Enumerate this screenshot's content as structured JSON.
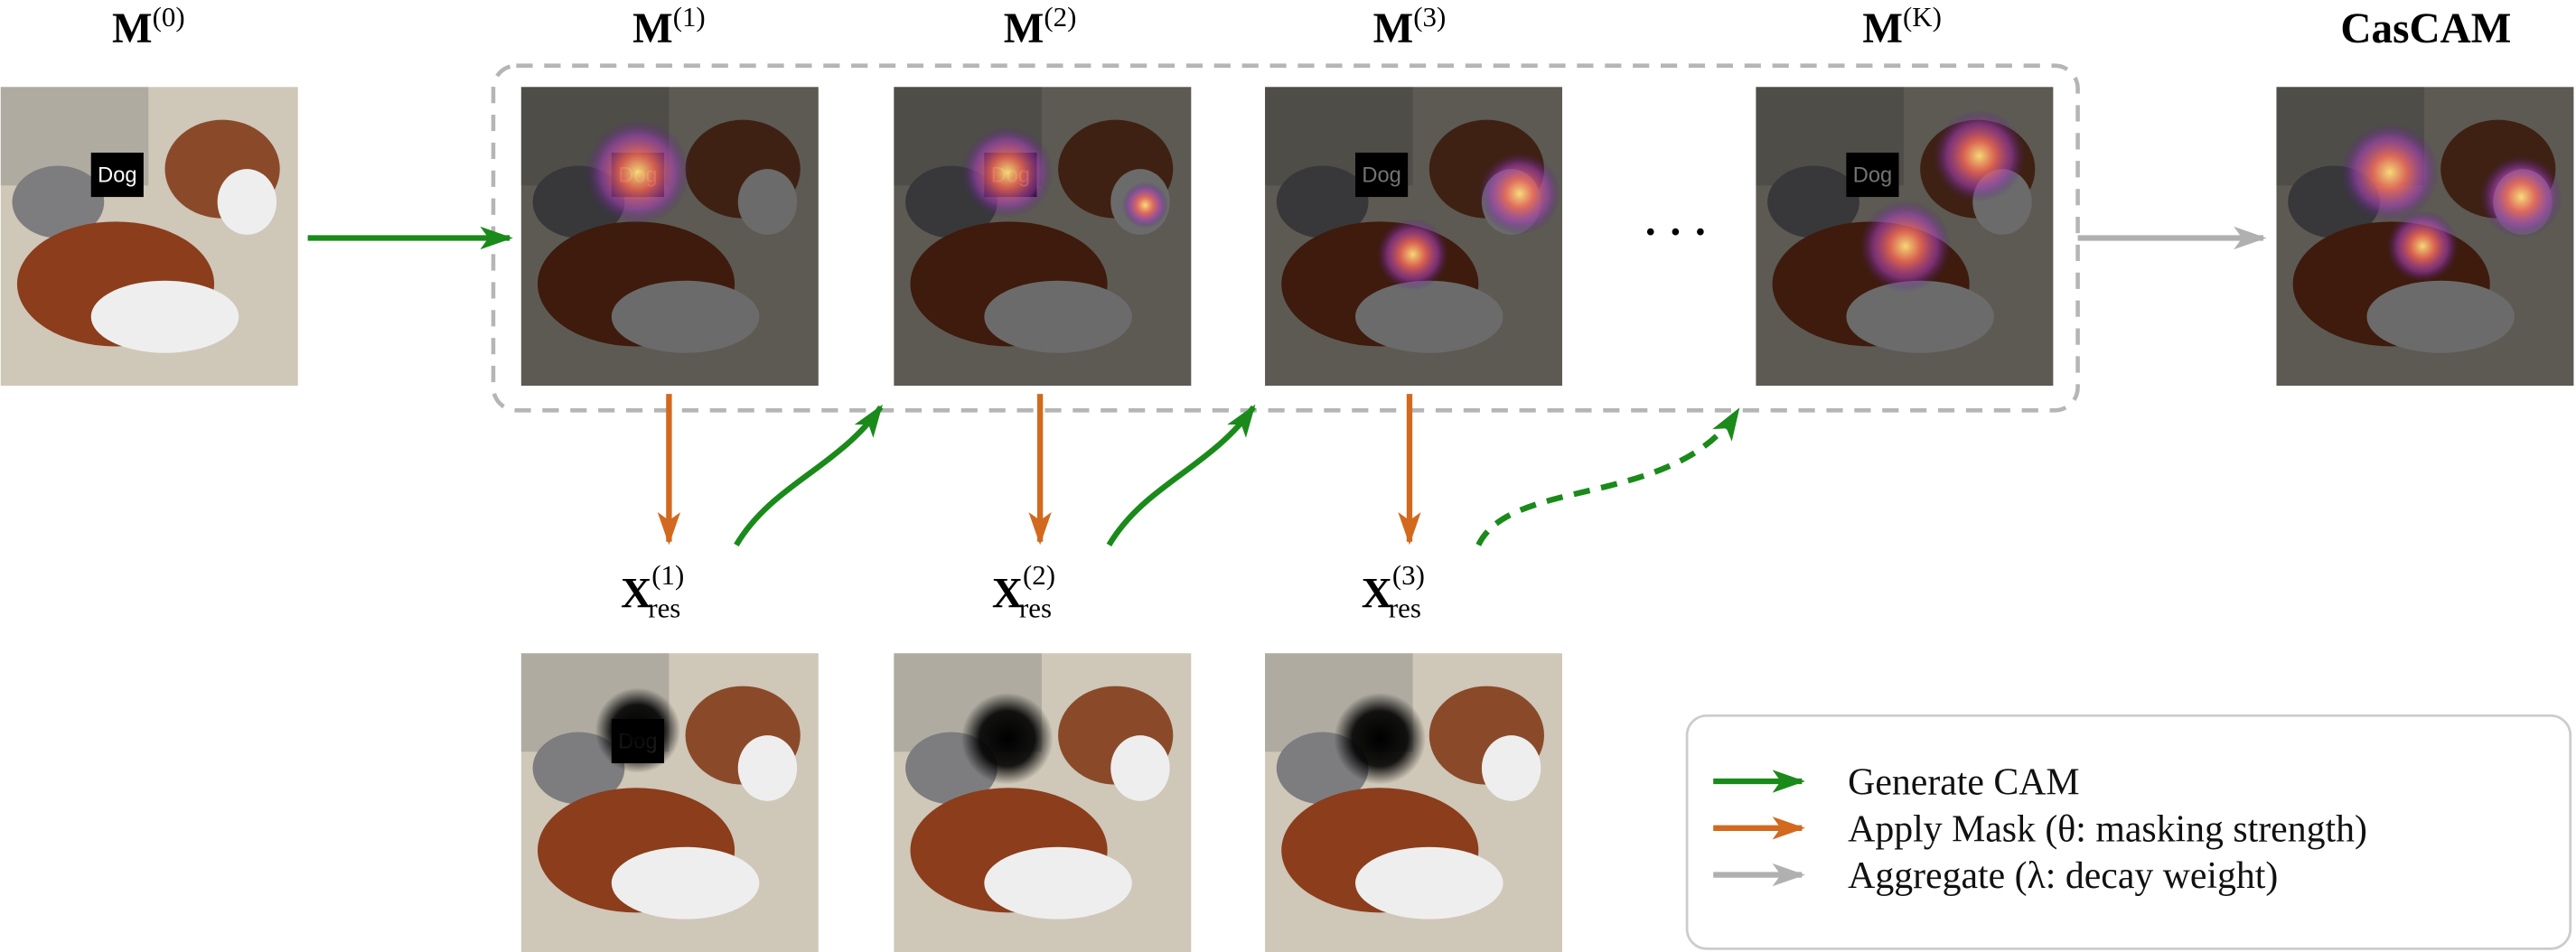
{
  "stages": [
    {
      "label": "M",
      "superscript": "(0)"
    },
    {
      "label": "M",
      "superscript": "(1)"
    },
    {
      "label": "M",
      "superscript": "(2)"
    },
    {
      "label": "M",
      "superscript": "(3)"
    },
    {
      "label": "M",
      "superscript": "(K)"
    }
  ],
  "output": {
    "label": "CasCAM"
  },
  "ellipsis": "· · ·",
  "image_tag": "Dog",
  "residuals": [
    {
      "label": "X",
      "superscript": "(1)",
      "subscript": "res"
    },
    {
      "label": "X",
      "superscript": "(2)",
      "subscript": "res"
    },
    {
      "label": "X",
      "superscript": "(3)",
      "subscript": "res"
    }
  ],
  "legend": [
    {
      "label": "Generate CAM"
    },
    {
      "label": "Apply Mask (θ: masking strength)"
    },
    {
      "label": "Aggregate (λ: decay weight)"
    }
  ]
}
